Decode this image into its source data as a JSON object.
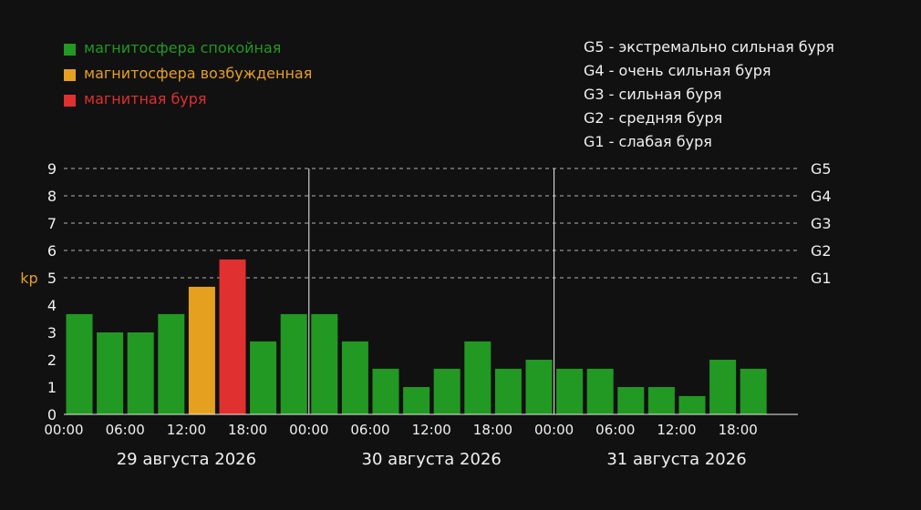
{
  "legend": [
    {
      "label": "магнитосфера спокойная",
      "color": "#229922"
    },
    {
      "label": "магнитосфера возбужденная",
      "color": "#e6a020"
    },
    {
      "label": "магнитная буря",
      "color": "#e03030"
    }
  ],
  "storm_levels": [
    "G5 - экстремально сильная буря",
    "G4 - очень сильная буря",
    "G3 - сильная буря",
    "G2 - средняя буря",
    "G1 - слабая буря"
  ],
  "chart_data": {
    "type": "bar",
    "ylabel": "kp",
    "ylim": [
      0,
      9
    ],
    "yticks": [
      0,
      1,
      2,
      3,
      4,
      5,
      6,
      7,
      8,
      9
    ],
    "g_levels": [
      {
        "label": "G1",
        "kp": 5
      },
      {
        "label": "G2",
        "kp": 6
      },
      {
        "label": "G3",
        "kp": 7
      },
      {
        "label": "G4",
        "kp": 8
      },
      {
        "label": "G5",
        "kp": 9
      }
    ],
    "grid": "dashed horizontal at G levels",
    "days": [
      "29 августа 2026",
      "30 августа 2026",
      "31 августа 2026"
    ],
    "time_labels": [
      "00:00",
      "06:00",
      "12:00",
      "18:00"
    ],
    "values": [
      3.67,
      3.0,
      3.0,
      3.67,
      4.67,
      5.67,
      2.67,
      3.67,
      3.67,
      2.67,
      1.67,
      1.0,
      1.67,
      2.67,
      1.67,
      2.0,
      1.67,
      1.67,
      1.0,
      1.0,
      0.67,
      2.0,
      1.67
    ],
    "colors": {
      "quiet": "#229922",
      "active": "#e6a020",
      "storm": "#e03030"
    },
    "ylabel_color": "#e6a020"
  }
}
